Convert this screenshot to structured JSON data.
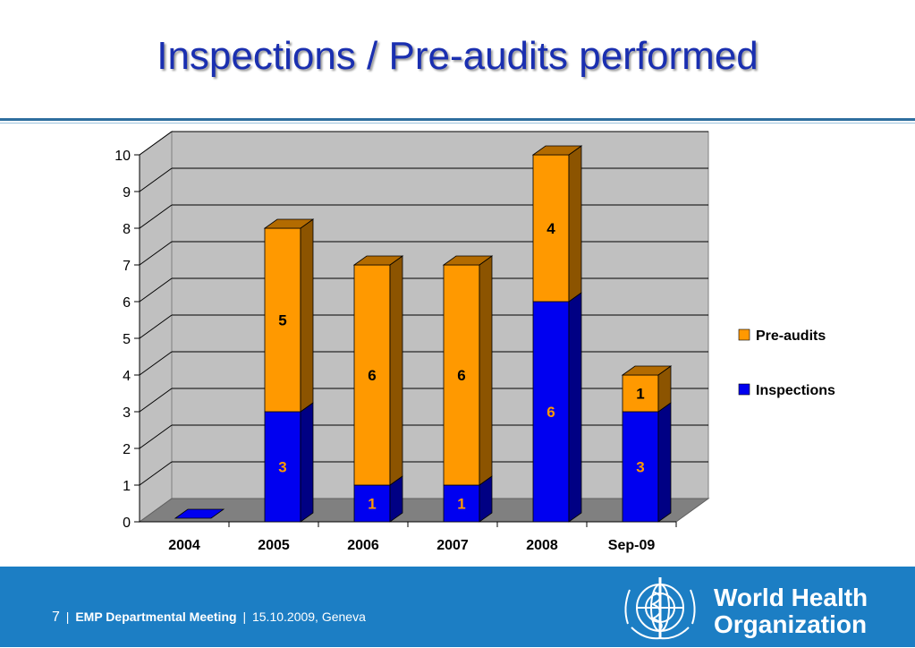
{
  "slide": {
    "title": "Inspections / Pre-audits performed"
  },
  "chart_data": {
    "type": "bar",
    "stacked": true,
    "three_d": true,
    "categories": [
      "2004",
      "2005",
      "2006",
      "2007",
      "2008",
      "Sep-09"
    ],
    "series": [
      {
        "name": "Inspections",
        "values": [
          0,
          3,
          1,
          1,
          6,
          3
        ],
        "color": "#0000f0",
        "label_color": "#ff9900"
      },
      {
        "name": "Pre-audits",
        "values": [
          0,
          5,
          6,
          6,
          4,
          1
        ],
        "color": "#ff9900",
        "label_color": "#000000"
      }
    ],
    "data_labels": [
      {
        "category": "2005",
        "series": "Inspections",
        "text": "3"
      },
      {
        "category": "2005",
        "series": "Pre-audits",
        "text": "5"
      },
      {
        "category": "2006",
        "series": "Inspections",
        "text": "1"
      },
      {
        "category": "2006",
        "series": "Pre-audits",
        "text": "6"
      },
      {
        "category": "2007",
        "series": "Inspections",
        "text": "1"
      },
      {
        "category": "2007",
        "series": "Pre-audits",
        "text": "6"
      },
      {
        "category": "2008",
        "series": "Inspections",
        "text": "6"
      },
      {
        "category": "2008",
        "series": "Pre-audits",
        "text": "4"
      },
      {
        "category": "Sep-09",
        "series": "Inspections",
        "text": "3"
      },
      {
        "category": "Sep-09",
        "series": "Pre-audits",
        "text": "1"
      }
    ],
    "ylim": [
      0,
      10
    ],
    "yticks": [
      "0",
      "1",
      "2",
      "3",
      "4",
      "5",
      "6",
      "7",
      "8",
      "9",
      "10"
    ],
    "grid": true,
    "legend_position": "right",
    "title": "",
    "xlabel": "",
    "ylabel": ""
  },
  "footer": {
    "page_number": "7",
    "separator": "|",
    "meeting": "EMP Departmental Meeting",
    "date_place": "15.10.2009, Geneva",
    "org_line1": "World Health",
    "org_line2": "Organization"
  },
  "colors": {
    "title": "#1a2fb0",
    "footer_background": "#1c7ec4",
    "rule": "#2e6e9e"
  },
  "icons": {
    "logo": "who-emblem-icon"
  }
}
